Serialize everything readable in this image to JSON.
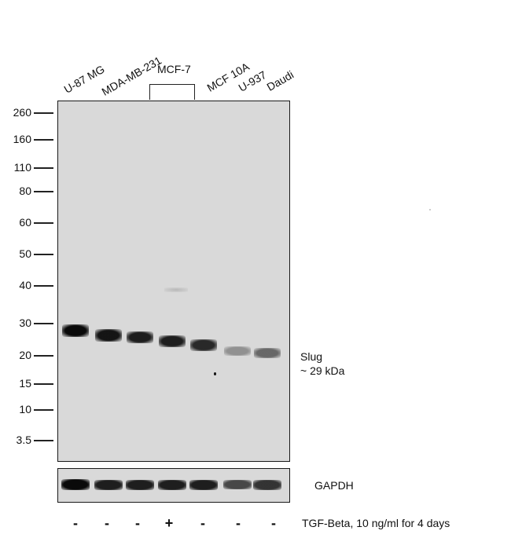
{
  "lanes": [
    {
      "label": "U-87 MG",
      "treatment": "-"
    },
    {
      "label": "MDA-MB-231",
      "treatment": "-"
    },
    {
      "label": "",
      "treatment": "-"
    },
    {
      "label": "",
      "treatment": "+"
    },
    {
      "label": "MCF 10A",
      "treatment": "-"
    },
    {
      "label": "U-937",
      "treatment": "-"
    },
    {
      "label": "Daudi",
      "treatment": "-"
    }
  ],
  "group_label": "MCF-7",
  "markers": [
    "260",
    "160",
    "110",
    "80",
    "60",
    "50",
    "40",
    "30",
    "20",
    "15",
    "10",
    "3.5"
  ],
  "target": {
    "name": "Slug",
    "size": "~ 29 kDa"
  },
  "loading_control": "GAPDH",
  "treatment_label": "TGF-Beta, 10 ng/ml for 4 days",
  "band_intensity": {
    "slug": [
      1.0,
      0.95,
      0.9,
      0.9,
      0.85,
      0.35,
      0.55
    ],
    "gapdh": [
      1.0,
      0.9,
      0.9,
      0.9,
      0.9,
      0.7,
      0.8
    ]
  },
  "colors": {
    "band": "#0d0d0d",
    "membrane": "#d9d9d9",
    "frame": "#1a1a1a"
  }
}
